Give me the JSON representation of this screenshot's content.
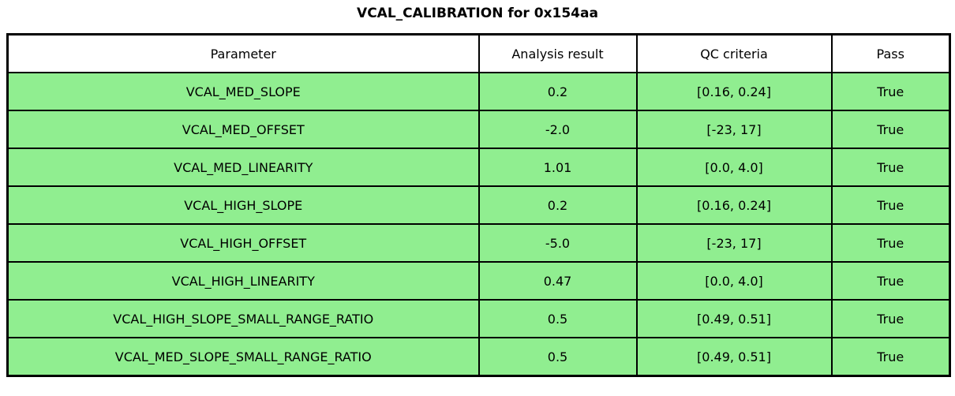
{
  "title": "VCAL_CALIBRATION for 0x154aa",
  "colors": {
    "pass_row_bg": "#90ee90",
    "header_bg": "#ffffff",
    "border": "#000000",
    "text": "#000000"
  },
  "chart_data": {
    "type": "table",
    "title": "VCAL_CALIBRATION for 0x154aa",
    "columns": [
      "Parameter",
      "Analysis result",
      "QC criteria",
      "Pass"
    ],
    "rows": [
      [
        "VCAL_MED_SLOPE",
        "0.2",
        "[0.16, 0.24]",
        "True"
      ],
      [
        "VCAL_MED_OFFSET",
        "-2.0",
        "[-23, 17]",
        "True"
      ],
      [
        "VCAL_MED_LINEARITY",
        "1.01",
        "[0.0, 4.0]",
        "True"
      ],
      [
        "VCAL_HIGH_SLOPE",
        "0.2",
        "[0.16, 0.24]",
        "True"
      ],
      [
        "VCAL_HIGH_OFFSET",
        "-5.0",
        "[-23, 17]",
        "True"
      ],
      [
        "VCAL_HIGH_LINEARITY",
        "0.47",
        "[0.0, 4.0]",
        "True"
      ],
      [
        "VCAL_HIGH_SLOPE_SMALL_RANGE_RATIO",
        "0.5",
        "[0.49, 0.51]",
        "True"
      ],
      [
        "VCAL_MED_SLOPE_SMALL_RANGE_RATIO",
        "0.5",
        "[0.49, 0.51]",
        "True"
      ]
    ],
    "legend": null,
    "grid": true,
    "notes": "All rows highlighted green indicating Pass = True"
  }
}
